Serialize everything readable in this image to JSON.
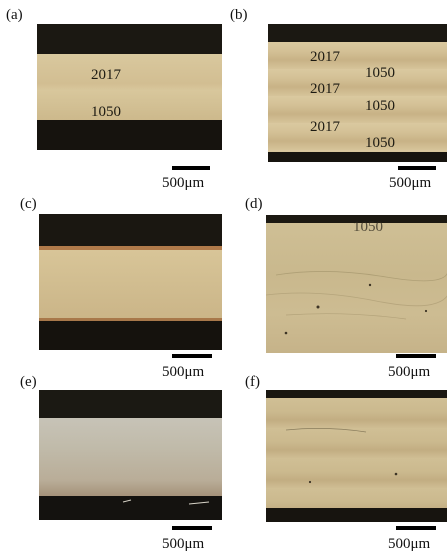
{
  "panels": [
    {
      "id": "a",
      "label": "(a)",
      "layers": [
        "2017",
        "1050"
      ],
      "scale": "500μm"
    },
    {
      "id": "b",
      "label": "(b)",
      "layers": [
        "2017",
        "1050",
        "2017",
        "1050",
        "2017",
        "1050"
      ],
      "scale": "500μm"
    },
    {
      "id": "c",
      "label": "(c)",
      "layers": [],
      "scale": "500μm"
    },
    {
      "id": "d",
      "label": "(d)",
      "layers": [
        "1050"
      ],
      "scale": "500μm"
    },
    {
      "id": "e",
      "label": "(e)",
      "layers": [],
      "scale": "500μm"
    },
    {
      "id": "f",
      "label": "(f)",
      "layers": [],
      "scale": "500μm"
    }
  ]
}
